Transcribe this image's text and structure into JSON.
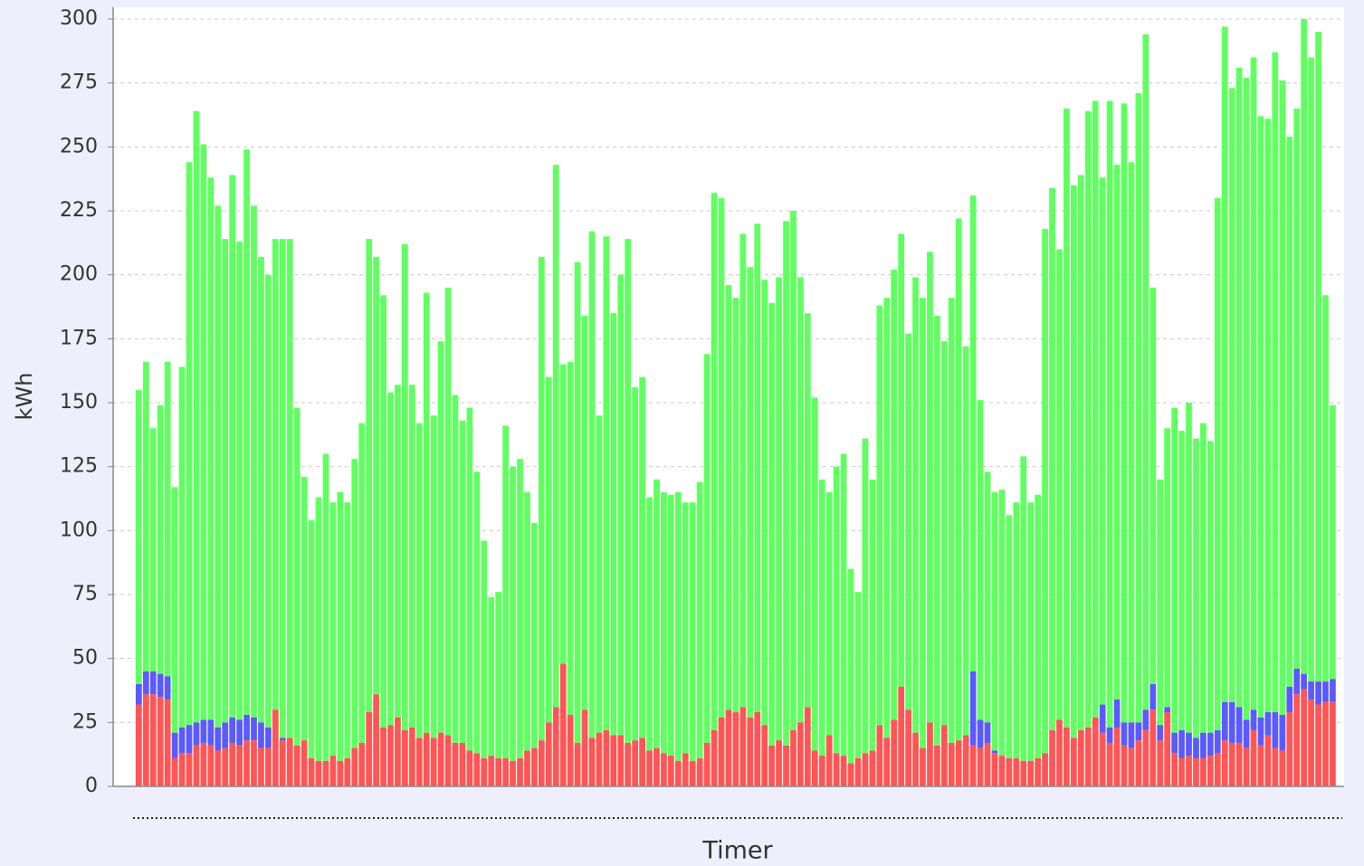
{
  "chart_data": {
    "type": "stacked_bar",
    "y_label": "kWh",
    "x_label": "Timer",
    "ylim": [
      0,
      300
    ],
    "yticks": [
      0,
      25,
      50,
      75,
      100,
      125,
      150,
      175,
      200,
      225,
      250,
      275,
      300
    ],
    "grid": true,
    "categories": [
      null,
      null,
      null,
      null,
      null,
      null,
      null,
      null,
      null,
      null,
      null,
      null,
      null,
      null,
      null,
      null,
      null,
      null,
      null,
      null,
      null,
      null,
      null,
      null,
      null,
      null,
      null,
      null,
      null,
      null,
      null,
      null,
      null,
      null,
      null,
      null,
      null,
      null,
      null,
      null,
      null,
      null,
      null,
      null,
      null,
      null,
      null,
      null,
      null,
      null,
      null,
      null,
      null,
      null,
      null,
      null,
      null,
      null,
      null,
      null,
      null,
      null,
      null,
      null,
      null,
      null,
      null,
      null,
      null,
      null,
      null,
      null,
      null,
      null,
      null,
      null,
      null,
      null,
      null,
      null,
      null,
      null,
      null,
      null,
      null,
      null,
      null,
      null,
      null,
      null,
      null,
      null,
      null,
      null,
      null,
      null,
      null,
      null,
      null,
      null,
      null,
      null,
      null,
      null,
      null,
      null,
      null,
      null,
      null,
      null,
      null,
      null,
      null,
      null,
      null,
      null,
      null,
      null,
      null,
      null,
      null,
      null,
      null,
      null,
      null,
      null,
      null,
      null,
      null,
      null,
      null,
      null,
      null,
      null,
      null,
      null,
      null,
      null,
      null,
      null,
      null,
      null,
      null,
      null,
      null,
      null,
      null,
      null,
      null,
      null,
      null,
      null,
      null,
      null,
      null,
      null,
      null,
      null,
      null,
      null,
      null,
      null,
      null,
      null,
      null,
      null,
      null
    ],
    "series": [
      {
        "color": "#ff5555",
        "values": [
          32,
          36,
          36,
          35,
          34,
          11,
          13,
          13,
          16,
          17,
          16,
          14,
          15,
          17,
          16,
          18,
          18,
          15,
          15,
          30,
          18,
          19,
          16,
          18,
          11,
          10,
          10,
          12,
          10,
          11,
          15,
          17,
          29,
          36,
          23,
          24,
          27,
          22,
          23,
          19,
          21,
          19,
          21,
          20,
          17,
          17,
          14,
          13,
          11,
          12,
          11,
          11,
          10,
          11,
          14,
          15,
          18,
          25,
          31,
          48,
          28,
          17,
          30,
          19,
          21,
          22,
          20,
          20,
          17,
          18,
          19,
          14,
          15,
          13,
          12,
          10,
          13,
          10,
          11,
          17,
          22,
          27,
          30,
          29,
          31,
          27,
          29,
          24,
          16,
          18,
          16,
          22,
          25,
          31,
          14,
          12,
          20,
          13,
          12,
          9,
          11,
          13,
          14,
          24,
          19,
          26,
          39,
          30,
          21,
          15,
          25,
          16,
          24,
          17,
          18,
          20,
          16,
          15,
          17,
          13,
          12,
          11,
          11,
          10,
          10,
          11,
          13,
          22,
          26,
          23,
          19,
          22,
          23,
          27,
          21,
          17,
          23,
          16,
          15,
          18,
          22,
          30,
          18,
          29,
          13,
          11,
          12,
          11,
          11,
          12,
          13,
          18,
          17,
          17,
          15,
          22,
          16,
          20,
          15,
          14,
          29,
          36,
          38,
          34,
          32,
          33,
          33
        ]
      },
      {
        "color": "#5a5aff",
        "values": [
          8,
          9,
          9,
          9,
          9,
          10,
          10,
          11,
          9,
          9,
          10,
          9,
          10,
          10,
          10,
          10,
          9,
          10,
          8,
          0,
          1,
          0,
          0,
          0,
          0,
          0,
          0,
          0,
          0,
          0,
          0,
          0,
          0,
          0,
          0,
          0,
          0,
          0,
          0,
          0,
          0,
          0,
          0,
          0,
          0,
          0,
          0,
          0,
          0,
          0,
          0,
          0,
          0,
          0,
          0,
          0,
          0,
          0,
          0,
          0,
          0,
          0,
          0,
          0,
          0,
          0,
          0,
          0,
          0,
          0,
          0,
          0,
          0,
          0,
          0,
          0,
          0,
          0,
          0,
          0,
          0,
          0,
          0,
          0,
          0,
          0,
          0,
          0,
          0,
          0,
          0,
          0,
          0,
          0,
          0,
          0,
          0,
          0,
          0,
          0,
          0,
          0,
          0,
          0,
          0,
          0,
          0,
          0,
          0,
          0,
          0,
          0,
          0,
          0,
          0,
          0,
          29,
          11,
          8,
          1,
          0,
          0,
          0,
          0,
          0,
          0,
          0,
          0,
          0,
          0,
          0,
          0,
          0,
          0,
          11,
          6,
          11,
          9,
          10,
          7,
          8,
          10,
          6,
          2,
          8,
          11,
          9,
          8,
          10,
          9,
          9,
          15,
          16,
          14,
          11,
          8,
          11,
          9,
          14,
          14,
          10,
          10,
          6,
          7,
          9,
          8,
          9
        ]
      },
      {
        "color": "#60ff60",
        "values": [
          115,
          121,
          95,
          105,
          123,
          96,
          141,
          220,
          239,
          225,
          212,
          204,
          189,
          212,
          187,
          221,
          200,
          182,
          177,
          184,
          195,
          195,
          132,
          103,
          93,
          103,
          120,
          99,
          105,
          100,
          113,
          125,
          185,
          171,
          169,
          130,
          130,
          190,
          134,
          123,
          172,
          126,
          153,
          175,
          136,
          126,
          134,
          110,
          85,
          62,
          65,
          130,
          115,
          117,
          101,
          88,
          189,
          135,
          212,
          117,
          138,
          188,
          154,
          198,
          124,
          193,
          165,
          180,
          197,
          138,
          141,
          99,
          105,
          102,
          102,
          105,
          98,
          101,
          108,
          152,
          210,
          203,
          166,
          162,
          185,
          176,
          191,
          174,
          173,
          181,
          205,
          203,
          174,
          154,
          138,
          108,
          95,
          112,
          118,
          76,
          65,
          123,
          106,
          164,
          172,
          176,
          177,
          147,
          178,
          176,
          184,
          168,
          150,
          174,
          204,
          152,
          186,
          125,
          98,
          101,
          104,
          95,
          100,
          119,
          101,
          103,
          205,
          212,
          184,
          242,
          216,
          217,
          241,
          241,
          206,
          245,
          209,
          242,
          219,
          246,
          264,
          155,
          96,
          109,
          127,
          117,
          129,
          117,
          121,
          114,
          208,
          264,
          240,
          250,
          251,
          255,
          235,
          232,
          258,
          248,
          215,
          219,
          256,
          244,
          254,
          151,
          107
        ]
      }
    ]
  }
}
